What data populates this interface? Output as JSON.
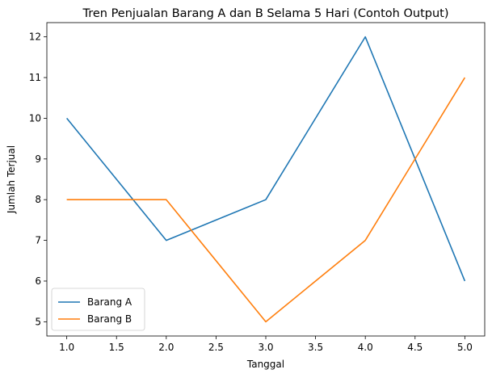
{
  "chart_data": {
    "type": "line",
    "title": "Tren Penjualan Barang A dan B Selama 5 Hari (Contoh Output)",
    "xlabel": "Tanggal",
    "ylabel": "Jumlah Terjual",
    "x": [
      1,
      2,
      3,
      4,
      5
    ],
    "xlim": [
      0.8,
      5.2
    ],
    "ylim": [
      4.65,
      12.35
    ],
    "xticks": [
      1.0,
      1.5,
      2.0,
      2.5,
      3.0,
      3.5,
      4.0,
      4.5,
      5.0
    ],
    "xtick_labels": [
      "1.0",
      "1.5",
      "2.0",
      "2.5",
      "3.0",
      "3.5",
      "4.0",
      "4.5",
      "5.0"
    ],
    "yticks": [
      5,
      6,
      7,
      8,
      9,
      10,
      11,
      12
    ],
    "ytick_labels": [
      "5",
      "6",
      "7",
      "8",
      "9",
      "10",
      "11",
      "12"
    ],
    "grid": false,
    "legend_position": "bottom-left",
    "series": [
      {
        "name": "Barang A",
        "color": "#1f77b4",
        "values": [
          10,
          7,
          8,
          12,
          6
        ]
      },
      {
        "name": "Barang B",
        "color": "#ff7f0e",
        "values": [
          8,
          8,
          5,
          7,
          11
        ]
      }
    ]
  }
}
